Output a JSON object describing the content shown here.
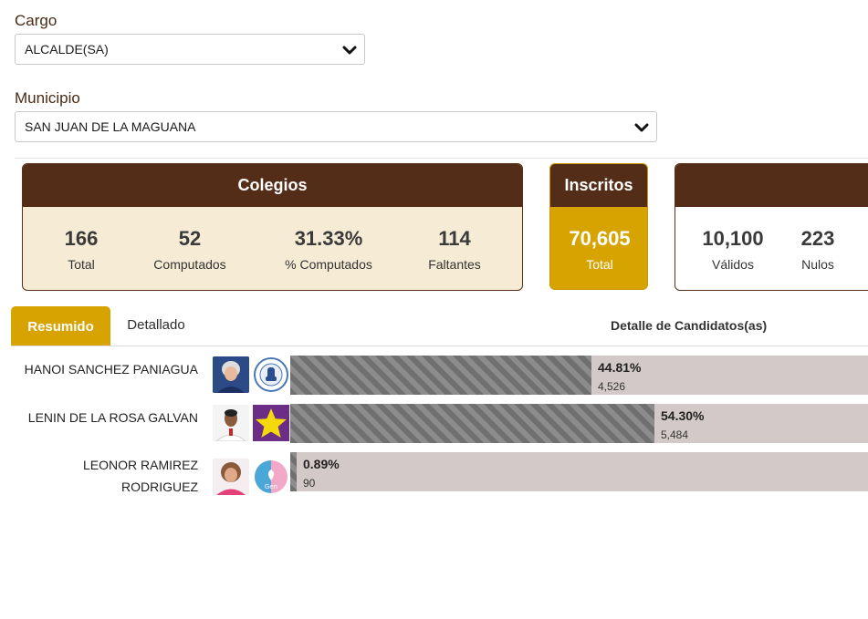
{
  "filters": {
    "cargo": {
      "label": "Cargo",
      "value": "ALCALDE(SA)"
    },
    "municipio": {
      "label": "Municipio",
      "value": "SAN JUAN DE LA MAGUANA"
    }
  },
  "colegios": {
    "title": "Colegios",
    "stats": [
      {
        "value": "166",
        "label": "Total"
      },
      {
        "value": "52",
        "label": "Computados"
      },
      {
        "value": "31.33%",
        "label": "% Computados"
      },
      {
        "value": "114",
        "label": "Faltantes"
      }
    ]
  },
  "inscritos": {
    "title": "Inscritos",
    "value": "70,605",
    "label": "Total"
  },
  "votos": {
    "stats": [
      {
        "value": "10,100",
        "label": "Válidos"
      },
      {
        "value": "223",
        "label": "Nulos"
      }
    ]
  },
  "tabs": {
    "resumido": "Resumido",
    "detallado": "Detallado"
  },
  "detail_title": "Detalle de Candidatos(as)",
  "candidates": [
    {
      "name_line1": "HANOI SANCHEZ PANIAGUA",
      "name_line2": "",
      "percent": "44.81%",
      "percent_value": 44.81,
      "votes": "4,526",
      "party_icon": "psd-party-logo"
    },
    {
      "name_line1": "LENIN DE LA ROSA GALVAN",
      "name_line2": "",
      "percent": "54.30%",
      "percent_value": 54.3,
      "votes": "5,484",
      "party_icon": "yellow-star-party-logo"
    },
    {
      "name_line1": "LEONOR RAMIREZ",
      "name_line2": "RODRIGUEZ",
      "percent": "0.89%",
      "percent_value": 0.89,
      "votes": "90",
      "party_icon": "gencos-party-logo"
    }
  ],
  "colors": {
    "brown": "#542d18",
    "gold": "#d7a300",
    "cream": "#f6ecd6",
    "bar_track": "#d2c9c8"
  }
}
